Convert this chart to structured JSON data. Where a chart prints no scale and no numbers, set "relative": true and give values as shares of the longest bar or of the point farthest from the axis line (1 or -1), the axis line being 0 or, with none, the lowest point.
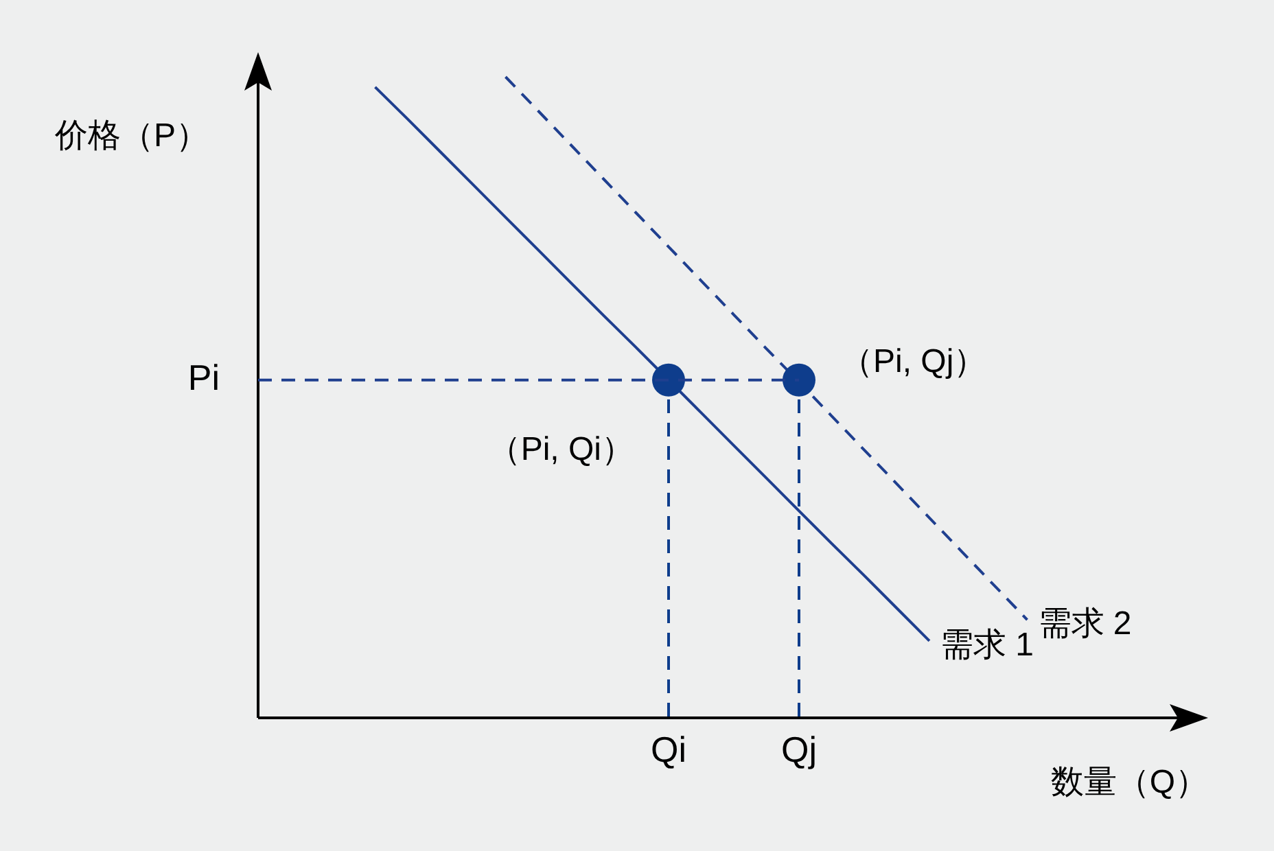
{
  "chart_data": {
    "type": "line",
    "relative": true,
    "xlabel": "数量（Q）",
    "ylabel": "价格（P）",
    "categories": [
      null,
      null,
      null,
      null,
      null,
      null,
      null,
      null,
      null,
      null,
      null,
      null,
      "Qi",
      null,
      null,
      null,
      "Qj",
      null,
      null,
      null,
      null,
      null,
      null,
      null,
      null,
      null,
      null,
      null
    ],
    "series": [
      {
        "name": "需求 1",
        "color": "#1f3f8f",
        "line_style": "solid",
        "values": [
          null,
          null,
          null,
          0.984,
          0.934,
          0.883,
          0.832,
          0.781,
          0.73,
          0.679,
          0.628,
          0.578,
          0.527,
          0.476,
          0.425,
          0.374,
          0.323,
          0.272,
          0.222,
          0.171,
          0.12,
          null,
          null,
          null,
          null,
          null,
          null,
          null
        ]
      },
      {
        "name": "需求 2",
        "color": "#1f3f8f",
        "line_style": "dashed",
        "values": [
          null,
          null,
          null,
          null,
          null,
          null,
          null,
          1.0,
          0.947,
          0.894,
          0.841,
          0.788,
          0.735,
          0.682,
          0.629,
          0.576,
          0.524,
          0.471,
          0.418,
          0.365,
          0.312,
          0.259,
          0.206,
          0.153,
          null,
          null,
          null,
          null
        ]
      },
      {
        "type": "lollipop",
        "color": "#0e3d8c",
        "marker": "circle",
        "line_style": "dashed",
        "x": [
          "Qi",
          "Qj"
        ],
        "values": [
          0.527,
          0.527
        ]
      }
    ],
    "ref_lines": [
      {
        "axis": "y",
        "value": 0.527,
        "label": "Pi",
        "color": "#1f3f8f",
        "line_style": "dashed"
      }
    ],
    "annotations": [
      {
        "text": "（Pi, Qi）",
        "x": "Qi",
        "y": 0.527
      },
      {
        "text": "（Pi, Qj）",
        "x": "Qj",
        "y": 0.527
      }
    ]
  }
}
